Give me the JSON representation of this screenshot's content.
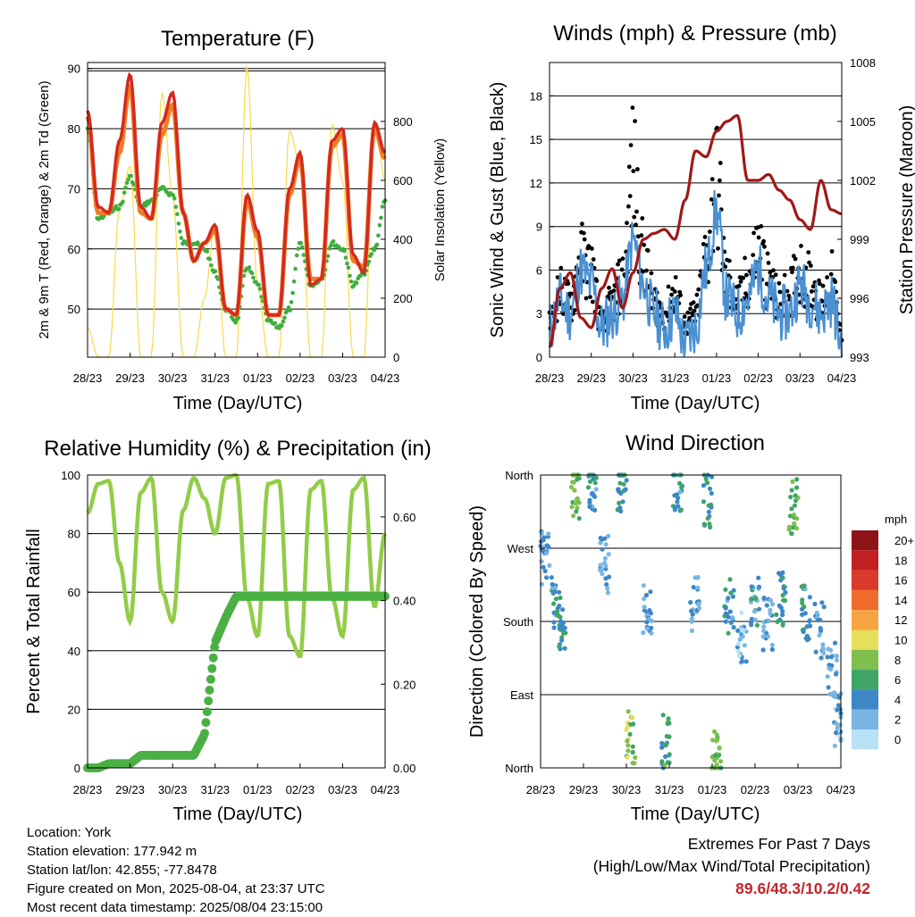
{
  "x_ticks": [
    "28/23",
    "29/23",
    "30/23",
    "31/23",
    "01/23",
    "02/23",
    "03/23",
    "04/23"
  ],
  "x_label": "Time (Day/UTC)",
  "colors": {
    "t2m": "#d42a20",
    "t9m": "#f07d24",
    "td": "#3fae3f",
    "solar": "#f5dc4a",
    "wind": "#4a90d2",
    "gust": "#000000",
    "pressure": "#a01818",
    "rh": "#92cc48",
    "rain": "#4ab043"
  },
  "speed_scale": {
    "unit": "mph",
    "labels": [
      "20+",
      "18",
      "16",
      "14",
      "12",
      "10",
      "8",
      "6",
      "4",
      "2",
      "0"
    ],
    "colors": [
      "#8e1517",
      "#c0201f",
      "#d93a2b",
      "#ee6b2b",
      "#f7a443",
      "#e6df5a",
      "#7fbf4d",
      "#3ea565",
      "#3d87c7",
      "#79b6e4",
      "#b9e2f7"
    ]
  },
  "charts": [
    {
      "id": "temperature",
      "title": "Temperature (F)",
      "ylabel_left": "2m & 9m T (Red, Orange) & 2m Td (Green)",
      "ylabel_right": "Solar Insolation (Yellow)",
      "left_ticks": [
        "50",
        "60",
        "70",
        "80",
        "90"
      ],
      "right_ticks": [
        "0",
        "200",
        "400",
        "600",
        "800"
      ]
    },
    {
      "id": "winds",
      "title": "Winds (mph) & Pressure (mb)",
      "ylabel_left": "Sonic Wind & Gust (Blue, Black)",
      "ylabel_right": "Station Pressure (Maroon)",
      "left_ticks": [
        "0",
        "3",
        "6",
        "9",
        "12",
        "15",
        "18"
      ],
      "right_ticks": [
        "993",
        "996",
        "999",
        "1002",
        "1005",
        "1008"
      ]
    },
    {
      "id": "humidity",
      "title": "Relative Humidity (%) & Precipitation (in)",
      "ylabel_left": "Percent & Total Rainfall",
      "left_ticks": [
        "0",
        "20",
        "40",
        "60",
        "80",
        "100"
      ],
      "right_ticks": [
        "0.00",
        "0.20",
        "0.40",
        "0.60"
      ]
    },
    {
      "id": "direction",
      "title": "Wind Direction",
      "ylabel_left": "Direction (Colored By Speed)",
      "left_ticks": [
        "North",
        "East",
        "South",
        "West",
        "North"
      ]
    }
  ],
  "chart_data": [
    {
      "type": "line",
      "title": "Temperature (F)",
      "xlabel": "Time (Day/UTC)",
      "ylabel": "2m & 9m T (Red, Orange) & 2m Td (Green)",
      "y2label": "Solar Insolation (Yellow)",
      "x": [
        0,
        0.25,
        0.5,
        0.75,
        1,
        1.25,
        1.5,
        1.75,
        2,
        2.25,
        2.5,
        2.75,
        3,
        3.25,
        3.5,
        3.75,
        4,
        4.25,
        4.5,
        4.75,
        5,
        5.25,
        5.5,
        5.75,
        6,
        6.25,
        6.5,
        6.75,
        7
      ],
      "ylim": [
        42,
        91
      ],
      "y2lim": [
        0,
        1000
      ],
      "series": [
        {
          "name": "2m T",
          "values": [
            83,
            67,
            66,
            78,
            89,
            67,
            65,
            81,
            86,
            66,
            58,
            61,
            64,
            50,
            49,
            69,
            63,
            49,
            49,
            70,
            76,
            54,
            55,
            78,
            80,
            59,
            56,
            81,
            76
          ]
        },
        {
          "name": "9m T",
          "values": [
            82,
            66,
            66,
            76,
            87,
            66,
            65,
            79,
            84,
            66,
            58,
            61,
            63,
            50,
            49,
            68,
            62,
            49,
            49,
            69,
            75,
            55,
            55,
            77,
            79,
            58,
            57,
            80,
            75
          ]
        },
        {
          "name": "2m Td",
          "values": [
            80,
            65,
            66,
            67,
            72,
            67,
            68,
            70,
            69,
            61,
            61,
            60,
            56,
            50,
            48,
            57,
            54,
            48,
            47,
            50,
            61,
            54,
            55,
            61,
            60,
            54,
            56,
            60,
            68
          ]
        },
        {
          "name": "Solar Insolation",
          "axis": "right",
          "values": [
            100,
            0,
            0,
            500,
            650,
            0,
            0,
            900,
            550,
            0,
            0,
            200,
            450,
            0,
            0,
            990,
            240,
            0,
            0,
            770,
            650,
            0,
            0,
            790,
            600,
            0,
            0,
            800,
            600
          ]
        }
      ]
    },
    {
      "type": "line",
      "title": "Winds (mph) & Pressure (mb)",
      "xlabel": "Time (Day/UTC)",
      "ylabel": "Sonic Wind & Gust (Blue, Black)",
      "y2label": "Station Pressure (Maroon)",
      "x": [
        0,
        0.25,
        0.5,
        0.75,
        1,
        1.25,
        1.5,
        1.75,
        2,
        2.25,
        2.5,
        2.75,
        3,
        3.25,
        3.5,
        3.75,
        4,
        4.25,
        4.5,
        4.75,
        5,
        5.25,
        5.5,
        5.75,
        6,
        6.25,
        6.5,
        6.75,
        7
      ],
      "ylim": [
        0,
        20.3
      ],
      "y2lim": [
        993,
        1008
      ],
      "series": [
        {
          "name": "Sonic Wind",
          "values": [
            2,
            4,
            3,
            6,
            5,
            2,
            3,
            4,
            8,
            5,
            3,
            2,
            3,
            1,
            2,
            6,
            10,
            4,
            3,
            4,
            6,
            4,
            3,
            3,
            5,
            4,
            3,
            4,
            1
          ]
        },
        {
          "name": "Gust",
          "values": [
            3,
            6,
            5,
            9,
            8,
            3,
            5,
            7,
            17,
            9,
            5,
            4,
            6,
            3,
            4,
            9,
            16,
            7,
            5,
            7,
            10,
            7,
            5,
            6,
            8,
            7,
            5,
            7,
            2
          ]
        },
        {
          "name": "Station Pressure",
          "axis": "right",
          "values": [
            993.5,
            996.5,
            997.3,
            995.0,
            994.5,
            996.5,
            997.5,
            995.5,
            997.3,
            999.0,
            999.3,
            999.5,
            999.0,
            1001.0,
            1003.5,
            1003.2,
            1004.5,
            1005.0,
            1005.3,
            1002.0,
            1002.0,
            1002.3,
            1001.5,
            1001.0,
            1000.0,
            999.5,
            1002.0,
            1000.5,
            1000.3
          ]
        }
      ]
    },
    {
      "type": "line",
      "title": "Relative Humidity (%) & Precipitation (in)",
      "xlabel": "Time (Day/UTC)",
      "ylabel": "Percent & Total Rainfall",
      "x": [
        0,
        0.25,
        0.5,
        0.75,
        1,
        1.25,
        1.5,
        1.75,
        2,
        2.25,
        2.5,
        2.75,
        3,
        3.25,
        3.5,
        3.75,
        4,
        4.25,
        4.5,
        4.75,
        5,
        5.25,
        5.5,
        5.75,
        6,
        6.25,
        6.5,
        6.75,
        7
      ],
      "ylim": [
        0,
        100
      ],
      "y2lim": [
        0,
        0.7
      ],
      "series": [
        {
          "name": "Relative Humidity",
          "values": [
            87,
            97,
            98,
            70,
            50,
            94,
            99,
            60,
            50,
            88,
            99,
            92,
            80,
            99,
            100,
            58,
            45,
            97,
            98,
            45,
            38,
            95,
            98,
            58,
            45,
            95,
            99,
            55,
            80
          ]
        },
        {
          "name": "Total Precipitation",
          "axis": "right",
          "values": [
            0,
            0,
            0.01,
            0.01,
            0.01,
            0.03,
            0.03,
            0.03,
            0.03,
            0.03,
            0.03,
            0.08,
            0.3,
            0.36,
            0.41,
            0.41,
            0.41,
            0.41,
            0.41,
            0.41,
            0.41,
            0.41,
            0.41,
            0.41,
            0.41,
            0.41,
            0.41,
            0.41,
            0.41
          ]
        }
      ]
    },
    {
      "type": "scatter",
      "title": "Wind Direction",
      "xlabel": "Time (Day/UTC)",
      "ylabel": "Direction (Colored By Speed)",
      "y_ticks": [
        "North",
        "East",
        "South",
        "West",
        "North"
      ],
      "ylim": [
        0,
        360
      ],
      "x": [
        0.1,
        0.35,
        0.5,
        0.8,
        1.2,
        1.5,
        1.9,
        2.1,
        2.5,
        2.9,
        3.2,
        3.6,
        3.9,
        4.1,
        4.4,
        4.7,
        5.0,
        5.3,
        5.6,
        5.9,
        6.2,
        6.5,
        6.8,
        6.95
      ],
      "y": [
        260,
        200,
        180,
        340,
        350,
        250,
        345,
        40,
        190,
        30,
        350,
        200,
        330,
        10,
        200,
        160,
        200,
        180,
        210,
        320,
        190,
        170,
        120,
        60
      ],
      "speed": [
        3,
        4,
        5,
        7,
        4,
        3,
        5,
        8,
        3,
        6,
        4,
        3,
        5,
        7,
        4,
        2,
        4,
        3,
        5,
        7,
        4,
        3,
        3,
        2
      ]
    }
  ],
  "info": {
    "location": "Location: York",
    "elevation": "Station elevation: 177.942 m",
    "latlon": "Station lat/lon: 42.855; -77.8478",
    "created": "Figure created on Mon, 2025-08-04, at 23:37 UTC",
    "recent": "Most recent data timestamp: 2025/08/04 23:15:00"
  },
  "extremes": {
    "title": "Extremes For Past 7 Days",
    "subtitle": "(High/Low/Max Wind/Total Precipitation)",
    "values": "89.6/48.3/10.2/0.42"
  }
}
